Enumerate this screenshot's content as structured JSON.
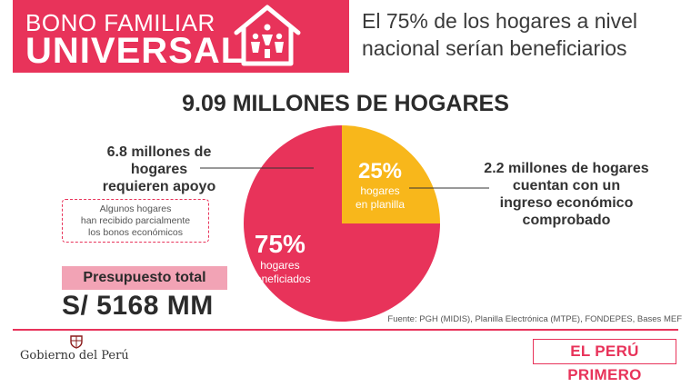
{
  "header": {
    "brand_line1": "BONO FAMILIAR",
    "brand_line2": "UNIVERSAL",
    "title_line1": "El 75% de los hogares a nivel",
    "title_line2": "nacional serían beneficiarios"
  },
  "main_title": "9.09 MILLONES DE HOGARES",
  "left_annotation": {
    "line1": "6.8 millones de",
    "line2": "hogares",
    "line3": "requieren apoyo"
  },
  "note": {
    "line1": "Algunos hogares",
    "line2": "han recibido parcialmente",
    "line3": "los bonos económicos"
  },
  "right_annotation": {
    "line1": "2.2 millones de hogares",
    "line2": "cuentan con un",
    "line3": "ingreso económico",
    "line4": "comprobado"
  },
  "budget": {
    "label": "Presupuesto total",
    "amount": "S/ 5168 MM"
  },
  "source": "Fuente: PGH (MIDIS), Planilla Electrónica (MTPE), FONDEPES, Bases MEF",
  "footer": {
    "gov_label": "Gobierno del Perú",
    "campaign": "EL PERÚ PRIMERO"
  },
  "colors": {
    "primary": "#e8335a",
    "secondary": "#f8b71b"
  },
  "chart_data": {
    "type": "pie",
    "title": "9.09 MILLONES DE HOGARES",
    "slices": [
      {
        "pct_label": "75%",
        "line1": "hogares",
        "line2": "beneficiados",
        "value": 75,
        "color": "#e8335a"
      },
      {
        "pct_label": "25%",
        "line1": "hogares",
        "line2": "en planilla",
        "value": 25,
        "color": "#f8b71b"
      }
    ]
  }
}
